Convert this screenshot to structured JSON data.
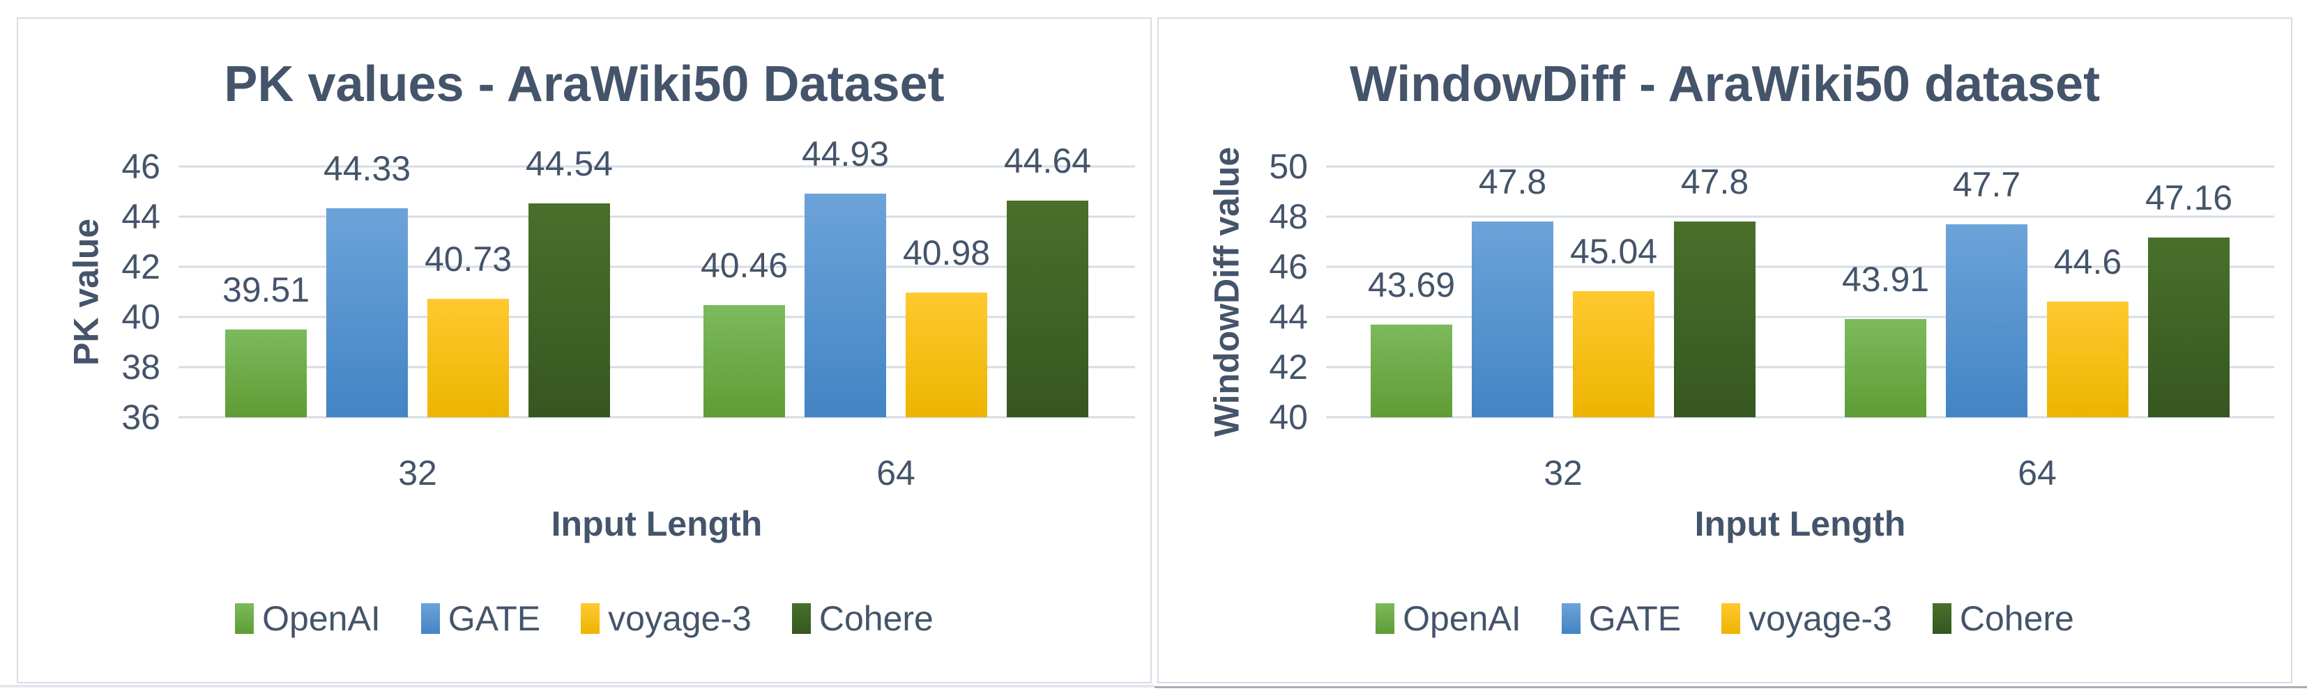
{
  "theme": {
    "text_color": "#44546A",
    "gridline_color": "#D7DCE4",
    "panel_border_color": "#D9DCE2",
    "panel_background": "#FFFFFF",
    "page_background": "#FFFFFF"
  },
  "chart_data": [
    {
      "type": "bar",
      "title": "PK values - AraWiki50 Dataset",
      "ylabel": "PK value",
      "xlabel": "Input Length",
      "ylim": [
        36,
        46
      ],
      "yticks": [
        46,
        44,
        42,
        40,
        38,
        36
      ],
      "grid": true,
      "legend_position": "bottom",
      "categories": [
        "32",
        "64"
      ],
      "series": [
        {
          "name": "OpenAI",
          "values": [
            39.51,
            40.46
          ],
          "color": "#70AD47",
          "color_top": "#7CBA5D",
          "color_bottom": "#5E9D34"
        },
        {
          "name": "GATE",
          "values": [
            44.33,
            44.93
          ],
          "color": "#5B9BD5",
          "color_top": "#6CA3D9",
          "color_bottom": "#4384C5"
        },
        {
          "name": "voyage-3",
          "values": [
            40.73,
            40.98
          ],
          "color": "#FFC000",
          "color_top": "#FFC82F",
          "color_bottom": "#EDB500"
        },
        {
          "name": "Cohere",
          "values": [
            44.54,
            44.64
          ],
          "color": "#375623",
          "color_top": "#48702B",
          "color_bottom": "#365720"
        }
      ]
    },
    {
      "type": "bar",
      "title": "WindowDiff - AraWiki50 dataset",
      "ylabel": "WindowDiff value",
      "xlabel": "Input Length",
      "ylim": [
        40,
        50
      ],
      "yticks": [
        50,
        48,
        46,
        44,
        42,
        40
      ],
      "grid": true,
      "legend_position": "bottom",
      "categories": [
        "32",
        "64"
      ],
      "series": [
        {
          "name": "OpenAI",
          "values": [
            43.69,
            43.91
          ],
          "color": "#70AD47",
          "color_top": "#7CBA5D",
          "color_bottom": "#5E9D34"
        },
        {
          "name": "GATE",
          "values": [
            47.8,
            47.7
          ],
          "color": "#5B9BD5",
          "color_top": "#6CA3D9",
          "color_bottom": "#4384C5"
        },
        {
          "name": "voyage-3",
          "values": [
            45.04,
            44.6
          ],
          "color": "#FFC000",
          "color_top": "#FFC82F",
          "color_bottom": "#EDB500"
        },
        {
          "name": "Cohere",
          "values": [
            47.8,
            47.16
          ],
          "color": "#375623",
          "color_top": "#48702B",
          "color_bottom": "#365720"
        }
      ]
    }
  ]
}
